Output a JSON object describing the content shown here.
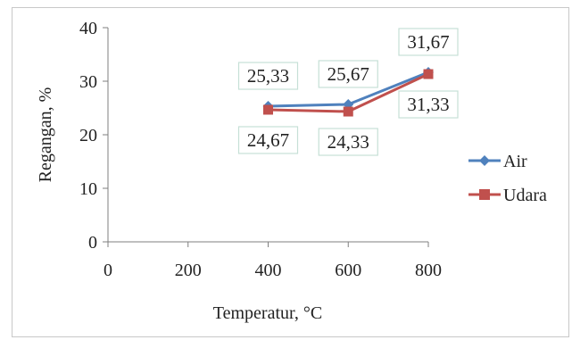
{
  "chart_data": {
    "type": "line",
    "title": "",
    "xlabel": "Temperatur, °C",
    "ylabel": "Regangan, %",
    "xlim": [
      0,
      800
    ],
    "ylim": [
      0,
      40
    ],
    "xticks": [
      0,
      200,
      400,
      600,
      800
    ],
    "yticks": [
      0,
      10,
      20,
      30,
      40
    ],
    "xtick_labels": [
      "0",
      "200",
      "400",
      "600",
      "800"
    ],
    "ytick_labels": [
      "0",
      "10",
      "20",
      "30",
      "40"
    ],
    "grid": false,
    "legend_position": "right",
    "series": [
      {
        "name": "Air",
        "color": "#4f81bd",
        "marker": "diamond",
        "x": [
          400,
          600,
          800
        ],
        "y": [
          25.33,
          25.67,
          31.67
        ],
        "labels": [
          "25,33",
          "25,67",
          "31,67"
        ]
      },
      {
        "name": "Udara",
        "color": "#c0504d",
        "marker": "square",
        "x": [
          400,
          600,
          800
        ],
        "y": [
          24.67,
          24.33,
          31.33
        ],
        "labels": [
          "24,67",
          "24,33",
          "31,33"
        ]
      }
    ]
  }
}
